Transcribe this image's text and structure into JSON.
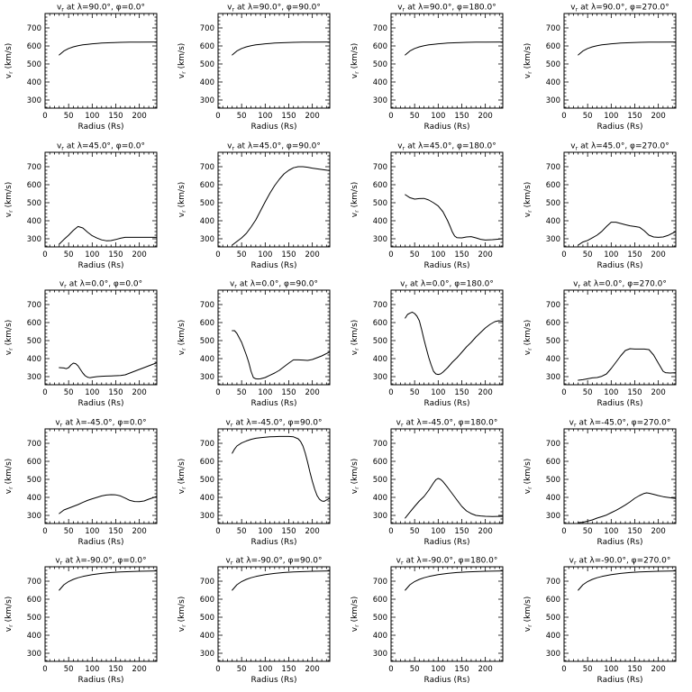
{
  "page": {
    "background": "#ffffff",
    "grid_rows": 5,
    "grid_cols": 4
  },
  "chart_data": {
    "type": "line",
    "line_color": "#000000",
    "frame_color": "#000000",
    "axes": {
      "xlabel": "Radius (Rs)",
      "ylabel_base": "v",
      "ylabel_sub": "r",
      "ylabel_rest": " (km/s)",
      "xticks": [
        0,
        50,
        100,
        150,
        200
      ],
      "yticks": [
        300,
        400,
        500,
        600,
        700
      ],
      "xlim": [
        0,
        237
      ],
      "ylim": [
        255,
        780
      ],
      "x_minor_step": 10,
      "y_minor_step": 20,
      "grid": "off",
      "legend": "none"
    },
    "title_template": {
      "base": "v",
      "sub": "r"
    },
    "panels": [
      {
        "lambda": "90.0",
        "phi": "0.0",
        "title_rest": " at λ=90.0°, φ=0.0°",
        "x": [
          30,
          40,
          50,
          60,
          70,
          80,
          90,
          100,
          110,
          120,
          140,
          160,
          180,
          200,
          237
        ],
        "y": [
          550,
          572,
          586,
          595,
          601,
          606,
          609,
          612,
          614,
          616,
          618,
          620,
          621,
          621,
          622
        ]
      },
      {
        "lambda": "90.0",
        "phi": "90.0",
        "title_rest": " at λ=90.0°, φ=90.0°",
        "x": [
          30,
          40,
          50,
          60,
          70,
          80,
          90,
          100,
          110,
          120,
          140,
          160,
          180,
          200,
          237
        ],
        "y": [
          550,
          572,
          586,
          595,
          601,
          606,
          609,
          612,
          614,
          616,
          618,
          620,
          621,
          621,
          622
        ]
      },
      {
        "lambda": "90.0",
        "phi": "180.0",
        "title_rest": " at λ=90.0°, φ=180.0°",
        "x": [
          30,
          40,
          50,
          60,
          70,
          80,
          90,
          100,
          110,
          120,
          140,
          160,
          180,
          200,
          237
        ],
        "y": [
          550,
          572,
          586,
          595,
          601,
          606,
          609,
          612,
          614,
          616,
          618,
          620,
          621,
          621,
          622
        ]
      },
      {
        "lambda": "90.0",
        "phi": "270.0",
        "title_rest": " at λ=90.0°, φ=270.0°",
        "x": [
          30,
          40,
          50,
          60,
          70,
          80,
          90,
          100,
          110,
          120,
          140,
          160,
          180,
          200,
          237
        ],
        "y": [
          550,
          572,
          586,
          595,
          601,
          606,
          609,
          612,
          614,
          616,
          618,
          620,
          621,
          621,
          622
        ]
      },
      {
        "lambda": "45.0",
        "phi": "0.0",
        "title_rest": " at λ=45.0°, φ=0.0°",
        "x": [
          30,
          40,
          50,
          60,
          70,
          80,
          90,
          100,
          110,
          120,
          130,
          140,
          150,
          160,
          170,
          190,
          237
        ],
        "y": [
          270,
          296,
          320,
          347,
          368,
          360,
          337,
          317,
          304,
          294,
          289,
          290,
          296,
          303,
          308,
          308,
          308
        ]
      },
      {
        "lambda": "45.0",
        "phi": "90.0",
        "title_rest": " at λ=45.0°, φ=90.0°",
        "x": [
          30,
          40,
          50,
          60,
          70,
          80,
          90,
          100,
          110,
          120,
          130,
          140,
          150,
          160,
          170,
          180,
          190,
          200,
          215,
          237
        ],
        "y": [
          265,
          285,
          305,
          330,
          365,
          405,
          455,
          505,
          553,
          595,
          630,
          660,
          680,
          694,
          700,
          700,
          697,
          692,
          686,
          678
        ]
      },
      {
        "lambda": "45.0",
        "phi": "180.0",
        "title_rest": " at λ=45.0°, φ=180.0°",
        "x": [
          30,
          40,
          50,
          60,
          70,
          80,
          90,
          100,
          110,
          120,
          125,
          130,
          135,
          140,
          150,
          160,
          170,
          180,
          190,
          200,
          215,
          237
        ],
        "y": [
          545,
          528,
          520,
          523,
          524,
          515,
          500,
          482,
          450,
          400,
          370,
          338,
          315,
          306,
          305,
          310,
          312,
          305,
          297,
          293,
          295,
          300
        ]
      },
      {
        "lambda": "45.0",
        "phi": "270.0",
        "title_rest": " at λ=45.0°, φ=270.0°",
        "x": [
          30,
          40,
          50,
          60,
          70,
          80,
          90,
          100,
          110,
          120,
          130,
          140,
          150,
          160,
          170,
          180,
          190,
          200,
          210,
          220,
          237
        ],
        "y": [
          265,
          282,
          291,
          305,
          320,
          341,
          368,
          392,
          392,
          385,
          378,
          372,
          368,
          364,
          345,
          320,
          310,
          308,
          310,
          318,
          340
        ]
      },
      {
        "lambda": "0.0",
        "phi": "0.0",
        "title_rest": " at λ=0.0°, φ=0.0°",
        "x": [
          30,
          40,
          45,
          50,
          55,
          60,
          65,
          70,
          75,
          80,
          85,
          90,
          95,
          100,
          110,
          120,
          130,
          140,
          150,
          160,
          170,
          180,
          190,
          200,
          210,
          220,
          237
        ],
        "y": [
          350,
          348,
          344,
          350,
          365,
          375,
          372,
          360,
          340,
          320,
          305,
          297,
          294,
          296,
          300,
          302,
          303,
          304,
          305,
          306,
          310,
          320,
          330,
          340,
          350,
          360,
          377
        ]
      },
      {
        "lambda": "0.0",
        "phi": "90.0",
        "title_rest": " at λ=0.0°, φ=90.0°",
        "x": [
          30,
          35,
          40,
          50,
          60,
          65,
          70,
          75,
          80,
          85,
          90,
          100,
          110,
          120,
          130,
          140,
          150,
          160,
          170,
          180,
          190,
          200,
          210,
          220,
          237
        ],
        "y": [
          555,
          555,
          540,
          490,
          420,
          380,
          330,
          295,
          288,
          287,
          288,
          295,
          308,
          320,
          335,
          355,
          375,
          393,
          393,
          392,
          390,
          395,
          405,
          415,
          437
        ]
      },
      {
        "lambda": "0.0",
        "phi": "180.0",
        "title_rest": " at λ=0.0°, φ=180.0°",
        "x": [
          30,
          35,
          40,
          45,
          50,
          55,
          60,
          65,
          70,
          75,
          80,
          85,
          90,
          95,
          100,
          105,
          110,
          120,
          130,
          140,
          150,
          160,
          170,
          180,
          190,
          200,
          210,
          220,
          228,
          237
        ],
        "y": [
          625,
          645,
          652,
          658,
          650,
          635,
          610,
          560,
          505,
          455,
          405,
          365,
          330,
          315,
          312,
          315,
          325,
          350,
          380,
          405,
          435,
          465,
          490,
          520,
          545,
          570,
          590,
          605,
          610,
          608
        ]
      },
      {
        "lambda": "0.0",
        "phi": "270.0",
        "title_rest": " at λ=0.0°, φ=270.0°",
        "x": [
          30,
          40,
          50,
          60,
          70,
          80,
          90,
          100,
          110,
          120,
          130,
          140,
          150,
          160,
          170,
          180,
          190,
          200,
          210,
          215,
          225,
          237
        ],
        "y": [
          280,
          283,
          288,
          293,
          295,
          302,
          315,
          345,
          380,
          415,
          445,
          455,
          453,
          453,
          453,
          450,
          420,
          375,
          330,
          322,
          320,
          322
        ]
      },
      {
        "lambda": "-45.0",
        "phi": "0.0",
        "title_rest": " at λ=-45.0°, φ=0.0°",
        "x": [
          30,
          40,
          50,
          60,
          70,
          80,
          90,
          100,
          110,
          120,
          130,
          140,
          150,
          160,
          170,
          180,
          190,
          200,
          210,
          220,
          237
        ],
        "y": [
          310,
          330,
          340,
          350,
          360,
          372,
          383,
          392,
          400,
          408,
          413,
          415,
          414,
          408,
          396,
          383,
          377,
          376,
          380,
          390,
          405
        ]
      },
      {
        "lambda": "-45.0",
        "phi": "90.0",
        "title_rest": " at λ=-45.0°, φ=90.0°",
        "x": [
          30,
          35,
          40,
          50,
          60,
          70,
          80,
          90,
          100,
          110,
          120,
          130,
          140,
          150,
          160,
          170,
          175,
          180,
          185,
          190,
          195,
          200,
          205,
          210,
          215,
          220,
          225,
          230,
          237
        ],
        "y": [
          645,
          668,
          685,
          702,
          713,
          722,
          728,
          731,
          734,
          736,
          737,
          738,
          738,
          738,
          736,
          725,
          710,
          685,
          645,
          595,
          540,
          490,
          445,
          410,
          390,
          380,
          378,
          385,
          395
        ]
      },
      {
        "lambda": "-45.0",
        "phi": "180.0",
        "title_rest": " at λ=-45.0°, φ=180.0°",
        "x": [
          30,
          40,
          50,
          60,
          70,
          80,
          90,
          95,
          100,
          105,
          110,
          120,
          130,
          140,
          150,
          160,
          170,
          180,
          190,
          200,
          215,
          237
        ],
        "y": [
          285,
          318,
          350,
          380,
          405,
          440,
          480,
          498,
          505,
          500,
          488,
          455,
          420,
          385,
          350,
          325,
          310,
          300,
          297,
          295,
          294,
          295
        ]
      },
      {
        "lambda": "-45.0",
        "phi": "270.0",
        "title_rest": " at λ=-45.0°, φ=270.0°",
        "x": [
          30,
          40,
          50,
          60,
          70,
          80,
          90,
          100,
          110,
          120,
          130,
          140,
          150,
          160,
          170,
          175,
          180,
          190,
          200,
          210,
          220,
          237
        ],
        "y": [
          260,
          262,
          268,
          275,
          285,
          293,
          302,
          315,
          328,
          342,
          358,
          375,
          395,
          410,
          422,
          425,
          423,
          417,
          410,
          404,
          400,
          394
        ]
      },
      {
        "lambda": "-90.0",
        "phi": "0.0",
        "title_rest": " at λ=-90.0°, φ=0.0°",
        "x": [
          30,
          40,
          50,
          60,
          70,
          80,
          100,
          120,
          140,
          160,
          180,
          200,
          237
        ],
        "y": [
          650,
          680,
          698,
          710,
          719,
          726,
          736,
          743,
          748,
          751,
          753,
          755,
          757
        ]
      },
      {
        "lambda": "-90.0",
        "phi": "90.0",
        "title_rest": " at λ=-90.0°, φ=90.0°",
        "x": [
          30,
          40,
          50,
          60,
          70,
          80,
          100,
          120,
          140,
          160,
          180,
          200,
          237
        ],
        "y": [
          650,
          680,
          698,
          710,
          719,
          726,
          736,
          743,
          748,
          751,
          753,
          755,
          757
        ]
      },
      {
        "lambda": "-90.0",
        "phi": "180.0",
        "title_rest": " at λ=-90.0°, φ=180.0°",
        "x": [
          30,
          40,
          50,
          60,
          70,
          80,
          100,
          120,
          140,
          160,
          180,
          200,
          237
        ],
        "y": [
          650,
          680,
          698,
          710,
          719,
          726,
          736,
          743,
          748,
          751,
          753,
          755,
          757
        ]
      },
      {
        "lambda": "-90.0",
        "phi": "270.0",
        "title_rest": " at λ=-90.0°, φ=270.0°",
        "x": [
          30,
          40,
          50,
          60,
          70,
          80,
          100,
          120,
          140,
          160,
          180,
          200,
          237
        ],
        "y": [
          650,
          680,
          698,
          710,
          719,
          726,
          736,
          743,
          748,
          751,
          753,
          755,
          757
        ]
      }
    ]
  }
}
